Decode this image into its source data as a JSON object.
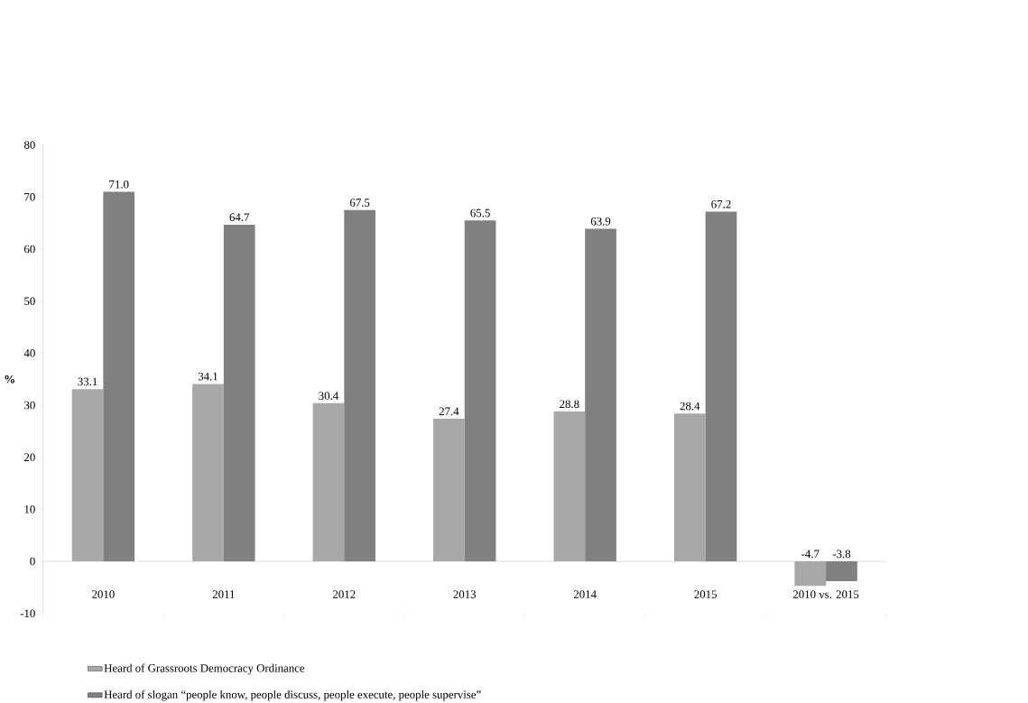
{
  "chart_data": {
    "type": "bar",
    "ylabel": "%",
    "categories": [
      "2010",
      "2011",
      "2012",
      "2013",
      "2014",
      "2015",
      "2010 vs. 2015"
    ],
    "series": [
      {
        "name": "Heard of Grassroots Democracy Ordinance",
        "color": "#a8a8a8",
        "values": [
          33.1,
          34.1,
          30.4,
          27.4,
          28.8,
          28.4,
          -4.7
        ],
        "value_labels": [
          "33.1",
          "34.1",
          "30.4",
          "27.4",
          "28.8",
          "28.4",
          "-4.7"
        ]
      },
      {
        "name": "Heard of slogan “people know, people discuss, people execute, people supervise”",
        "color": "#808083",
        "values": [
          71.0,
          64.7,
          67.5,
          65.5,
          63.9,
          67.2,
          -3.8
        ],
        "value_labels": [
          "71.0",
          "64.7",
          "67.5",
          "65.5",
          "63.9",
          "67.2",
          "-3.8"
        ]
      }
    ],
    "ylim": [
      -10,
      80
    ],
    "yticks": [
      -10,
      0,
      10,
      20,
      30,
      40,
      50,
      60,
      70,
      80
    ],
    "grid": false,
    "legend": "bottom"
  }
}
